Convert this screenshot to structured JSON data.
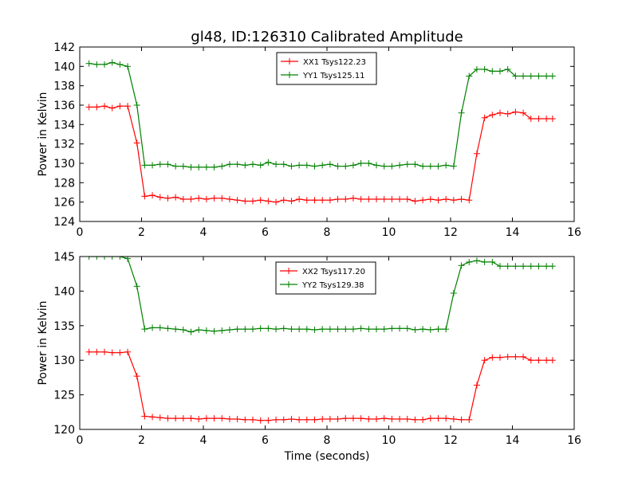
{
  "figure": {
    "title": "gl48, ID:126310 Calibrated Amplitude",
    "background": "#ffffff"
  },
  "chart_data": [
    {
      "type": "line",
      "title": "gl48, ID:126310 Calibrated Amplitude",
      "xlabel": "",
      "ylabel": "Power in Kelvin",
      "xlim": [
        0,
        16
      ],
      "ylim": [
        124,
        142
      ],
      "xticks": [
        0,
        2,
        4,
        6,
        8,
        10,
        12,
        14,
        16
      ],
      "yticks": [
        124,
        126,
        128,
        130,
        132,
        134,
        136,
        138,
        140,
        142
      ],
      "grid": false,
      "legend_position": "top-center",
      "x": [
        0.3,
        0.55,
        0.8,
        1.05,
        1.3,
        1.55,
        1.85,
        2.1,
        2.35,
        2.6,
        2.85,
        3.1,
        3.35,
        3.6,
        3.85,
        4.1,
        4.35,
        4.6,
        4.85,
        5.1,
        5.35,
        5.6,
        5.85,
        6.1,
        6.35,
        6.6,
        6.85,
        7.1,
        7.35,
        7.6,
        7.85,
        8.1,
        8.35,
        8.6,
        8.85,
        9.1,
        9.35,
        9.6,
        9.85,
        10.1,
        10.35,
        10.6,
        10.85,
        11.1,
        11.35,
        11.6,
        11.85,
        12.1,
        12.35,
        12.6,
        12.85,
        13.1,
        13.35,
        13.6,
        13.85,
        14.1,
        14.35,
        14.6,
        14.85,
        15.1,
        15.3
      ],
      "series": [
        {
          "name": "XX1 Tsys122.23",
          "color": "#ff0000",
          "values": [
            135.8,
            135.8,
            135.9,
            135.7,
            135.9,
            135.9,
            132.1,
            126.6,
            126.7,
            126.5,
            126.4,
            126.5,
            126.3,
            126.3,
            126.4,
            126.3,
            126.4,
            126.4,
            126.3,
            126.2,
            126.1,
            126.1,
            126.2,
            126.1,
            126.0,
            126.2,
            126.1,
            126.3,
            126.2,
            126.2,
            126.2,
            126.2,
            126.3,
            126.3,
            126.4,
            126.3,
            126.3,
            126.3,
            126.3,
            126.3,
            126.3,
            126.3,
            126.1,
            126.2,
            126.3,
            126.2,
            126.3,
            126.2,
            126.3,
            126.2,
            131.0,
            134.7,
            135.0,
            135.2,
            135.1,
            135.3,
            135.2,
            134.6,
            134.6,
            134.6,
            134.6
          ]
        },
        {
          "name": "YY1 Tsys125.11",
          "color": "#008000",
          "values": [
            140.3,
            140.2,
            140.2,
            140.4,
            140.2,
            140.0,
            136.0,
            129.8,
            129.8,
            129.9,
            129.9,
            129.7,
            129.7,
            129.6,
            129.6,
            129.6,
            129.6,
            129.7,
            129.9,
            129.9,
            129.8,
            129.9,
            129.8,
            130.1,
            129.9,
            129.9,
            129.7,
            129.8,
            129.8,
            129.7,
            129.8,
            129.9,
            129.7,
            129.7,
            129.8,
            130.0,
            130.0,
            129.8,
            129.7,
            129.7,
            129.8,
            129.9,
            129.9,
            129.7,
            129.7,
            129.7,
            129.8,
            129.7,
            135.2,
            139.0,
            139.7,
            139.7,
            139.5,
            139.5,
            139.7,
            139.0,
            139.0,
            139.0,
            139.0,
            139.0,
            139.0
          ]
        }
      ]
    },
    {
      "type": "line",
      "title": "",
      "xlabel": "Time (seconds)",
      "ylabel": "Power in Kelvin",
      "xlim": [
        0,
        16
      ],
      "ylim": [
        120,
        145
      ],
      "xticks": [
        0,
        2,
        4,
        6,
        8,
        10,
        12,
        14,
        16
      ],
      "yticks": [
        120,
        125,
        130,
        135,
        140,
        145
      ],
      "grid": false,
      "legend_position": "top-center",
      "x": [
        0.3,
        0.55,
        0.8,
        1.05,
        1.3,
        1.55,
        1.85,
        2.1,
        2.35,
        2.6,
        2.85,
        3.1,
        3.35,
        3.6,
        3.85,
        4.1,
        4.35,
        4.6,
        4.85,
        5.1,
        5.35,
        5.6,
        5.85,
        6.1,
        6.35,
        6.6,
        6.85,
        7.1,
        7.35,
        7.6,
        7.85,
        8.1,
        8.35,
        8.6,
        8.85,
        9.1,
        9.35,
        9.6,
        9.85,
        10.1,
        10.35,
        10.6,
        10.85,
        11.1,
        11.35,
        11.6,
        11.85,
        12.1,
        12.35,
        12.6,
        12.85,
        13.1,
        13.35,
        13.6,
        13.85,
        14.1,
        14.35,
        14.6,
        14.85,
        15.1,
        15.3
      ],
      "series": [
        {
          "name": "XX2 Tsys117.20",
          "color": "#ff0000",
          "values": [
            131.2,
            131.2,
            131.2,
            131.1,
            131.1,
            131.2,
            127.7,
            121.9,
            121.8,
            121.7,
            121.6,
            121.6,
            121.6,
            121.6,
            121.5,
            121.6,
            121.6,
            121.6,
            121.5,
            121.5,
            121.4,
            121.4,
            121.3,
            121.3,
            121.4,
            121.4,
            121.5,
            121.4,
            121.4,
            121.4,
            121.5,
            121.5,
            121.5,
            121.6,
            121.6,
            121.6,
            121.5,
            121.5,
            121.6,
            121.5,
            121.5,
            121.5,
            121.4,
            121.4,
            121.6,
            121.6,
            121.6,
            121.5,
            121.4,
            121.4,
            126.4,
            130.0,
            130.4,
            130.4,
            130.5,
            130.5,
            130.5,
            130.0,
            130.0,
            130.0,
            130.0
          ]
        },
        {
          "name": "YY2 Tsys129.38",
          "color": "#008000",
          "values": [
            145.0,
            145.0,
            145.0,
            145.0,
            145.0,
            144.7,
            140.7,
            134.5,
            134.7,
            134.7,
            134.6,
            134.5,
            134.4,
            134.1,
            134.4,
            134.3,
            134.2,
            134.3,
            134.4,
            134.5,
            134.5,
            134.5,
            134.6,
            134.6,
            134.5,
            134.6,
            134.5,
            134.5,
            134.5,
            134.4,
            134.5,
            134.5,
            134.5,
            134.5,
            134.5,
            134.6,
            134.5,
            134.5,
            134.5,
            134.6,
            134.6,
            134.6,
            134.4,
            134.5,
            134.4,
            134.5,
            134.5,
            139.7,
            143.7,
            144.2,
            144.4,
            144.2,
            144.2,
            143.6,
            143.6,
            143.6,
            143.6,
            143.6,
            143.6,
            143.6,
            143.6
          ]
        }
      ]
    }
  ]
}
